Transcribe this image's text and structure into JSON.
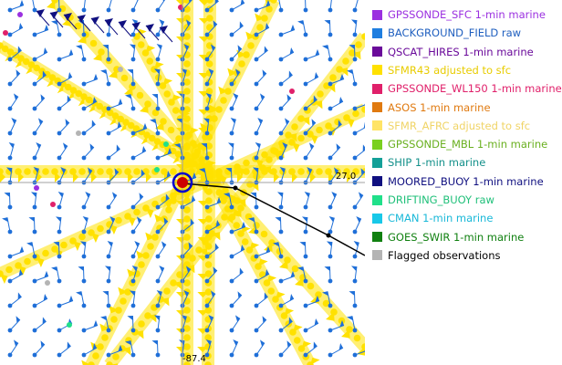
{
  "plot": {
    "background": "#ffffff",
    "grid_color": "#a0a0a0",
    "axis_labels": {
      "right_lat": "27.0",
      "bottom_lon": "-87.4"
    },
    "storm_center_color": "#0000cc",
    "storm_core_color": "#cc0000",
    "track_color": "#000000",
    "sfmr_color": "#ffe100",
    "buoy_color": "#1f6fd8"
  },
  "legend": {
    "items": [
      {
        "label": "GPSSONDE_SFC 1-min marine",
        "color": "#9b30e0",
        "text_color": "#9b30e0"
      },
      {
        "label": "BACKGROUND_FIELD raw",
        "color": "#1f7ee0",
        "text_color": "#1f5fbf"
      },
      {
        "label": "QSCAT_HIRES 1-min marine",
        "color": "#6a0a9a",
        "text_color": "#6a0a9a"
      },
      {
        "label": "SFMR43 adjusted to sfc",
        "color": "#ffe100",
        "text_color": "#e8cc00"
      },
      {
        "label": "GPSSONDE_WL150 1-min marine",
        "color": "#e0206a",
        "text_color": "#e0206a"
      },
      {
        "label": "ASOS 1-min marine",
        "color": "#e07a10",
        "text_color": "#e07a10"
      },
      {
        "label": "SFMR_AFRC adjusted to sfc",
        "color": "#ffe466",
        "text_color": "#f0d466"
      },
      {
        "label": "GPSSONDE_MBL 1-min marine",
        "color": "#7ad020",
        "text_color": "#6ab020"
      },
      {
        "label": "SHIP 1-min marine",
        "color": "#14a098",
        "text_color": "#14908a"
      },
      {
        "label": "MOORED_BUOY 1-min marine",
        "color": "#101080",
        "text_color": "#101080"
      },
      {
        "label": "DRIFTING_BUOY raw",
        "color": "#20e08a",
        "text_color": "#20c07a"
      },
      {
        "label": "CMAN 1-min marine",
        "color": "#18c8e8",
        "text_color": "#18b8d8"
      },
      {
        "label": "GOES_SWIR 1-min marine",
        "color": "#108010",
        "text_color": "#108010"
      },
      {
        "label": "Flagged observations",
        "color": "#b4b4b4",
        "text_color": "#000000"
      }
    ]
  }
}
